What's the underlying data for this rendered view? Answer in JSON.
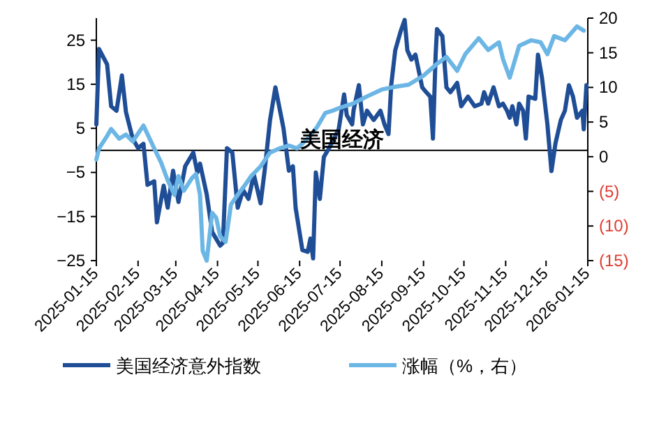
{
  "chart_data": {
    "type": "line",
    "title": "美国经济",
    "xlim": [
      "2025-01-15",
      "2026-01-15"
    ],
    "xticks": [
      "2025-01-15",
      "2025-02-15",
      "2025-03-15",
      "2025-04-15",
      "2025-05-15",
      "2025-06-15",
      "2025-07-15",
      "2025-08-15",
      "2025-09-15",
      "2025-10-15",
      "2025-11-15",
      "2025-12-15",
      "2026-01-15"
    ],
    "ylim": [
      -25,
      30
    ],
    "yticks": [
      -25,
      -15,
      -5,
      5,
      15,
      25
    ],
    "y2lim": [
      -15,
      20
    ],
    "y2ticks": [
      {
        "value": -15,
        "label": "(15)"
      },
      {
        "value": -10,
        "label": "(10)"
      },
      {
        "value": -5,
        "label": "(5)"
      },
      0,
      5,
      10,
      15,
      20
    ],
    "legend": "bottom",
    "grid": false,
    "marker": "none",
    "line_style": "solid",
    "series": [
      {
        "name": "美国经济意外指数",
        "color": "#1f4e96",
        "x": [
          "2025-01-15",
          "2025-01-17",
          "2025-01-23",
          "2025-01-26",
          "2025-01-30",
          "2025-02-03",
          "2025-02-06",
          "2025-02-11",
          "2025-02-15",
          "2025-02-19",
          "2025-02-22",
          "2025-02-27",
          "2025-03-01",
          "2025-03-06",
          "2025-03-09",
          "2025-03-13",
          "2025-03-17",
          "2025-03-22",
          "2025-03-28",
          "2025-03-31",
          "2025-04-02",
          "2025-04-07",
          "2025-04-11",
          "2025-04-17",
          "2025-04-19",
          "2025-04-22",
          "2025-04-26",
          "2025-04-30",
          "2025-05-04",
          "2025-05-08",
          "2025-05-12",
          "2025-05-17",
          "2025-05-20",
          "2025-05-24",
          "2025-05-28",
          "2025-06-03",
          "2025-06-07",
          "2025-06-10",
          "2025-06-12",
          "2025-06-17",
          "2025-06-21",
          "2025-06-23",
          "2025-06-25",
          "2025-06-27",
          "2025-06-30",
          "2025-07-03",
          "2025-07-07",
          "2025-07-14",
          "2025-07-18",
          "2025-07-20",
          "2025-07-24",
          "2025-07-25",
          "2025-07-29",
          "2025-08-01",
          "2025-08-04",
          "2025-08-09",
          "2025-08-14",
          "2025-08-17",
          "2025-08-20",
          "2025-08-22",
          "2025-08-25",
          "2025-08-29",
          "2025-09-01",
          "2025-09-03",
          "2025-09-06",
          "2025-09-09",
          "2025-09-14",
          "2025-09-17",
          "2025-09-20",
          "2025-09-22",
          "2025-09-24",
          "2025-09-25",
          "2025-09-29",
          "2025-10-02",
          "2025-10-05",
          "2025-10-10",
          "2025-10-13",
          "2025-10-18",
          "2025-10-23",
          "2025-10-28",
          "2025-10-30",
          "2025-11-02",
          "2025-11-06",
          "2025-11-10",
          "2025-11-13",
          "2025-11-16",
          "2025-11-18",
          "2025-11-20",
          "2025-11-23",
          "2025-11-25",
          "2025-11-28",
          "2025-11-30",
          "2025-12-02",
          "2025-12-07",
          "2025-12-09",
          "2025-12-12",
          "2025-12-16",
          "2025-12-19",
          "2025-12-22",
          "2025-12-26",
          "2025-12-29",
          "2026-01-01",
          "2026-01-04",
          "2026-01-07",
          "2026-01-11",
          "2026-01-12",
          "2026-01-14"
        ],
        "values": [
          5.9,
          23,
          19.5,
          10,
          9,
          17,
          8.7,
          2.7,
          0.5,
          1.5,
          -7.8,
          -7,
          -16.3,
          -8,
          -13,
          -4.6,
          -11.7,
          -3.6,
          -0.5,
          -5,
          -3,
          -10,
          -18.5,
          -21.6,
          -21,
          0.5,
          -0.5,
          -13,
          -9,
          -11,
          -5.5,
          -12,
          -4.6,
          6.9,
          14.3,
          5,
          -4.6,
          -3.6,
          -13,
          -22.6,
          -23,
          -20,
          -24.5,
          -5,
          -11,
          -1.5,
          0.6,
          4.8,
          12.7,
          8,
          5.9,
          9,
          14.8,
          5.9,
          9,
          6.9,
          9,
          5.9,
          3.7,
          14.8,
          22.7,
          27,
          29.6,
          22.7,
          20.6,
          21.7,
          14.3,
          13.2,
          12.2,
          2.7,
          21.7,
          27.5,
          25.9,
          14.3,
          13.2,
          15.3,
          10,
          12.2,
          10,
          10.6,
          13.2,
          10.6,
          14.3,
          10,
          10.6,
          9,
          7.4,
          10,
          5.9,
          10.6,
          9,
          2.7,
          12.2,
          11.7,
          21.7,
          16.4,
          5.9,
          -4.7,
          1.6,
          6.9,
          9,
          14.8,
          12.2,
          7.4,
          9,
          4.8,
          14.8
        ]
      },
      {
        "name": "涨幅（%，右）",
        "color": "#6cb6e6",
        "axis": "y2",
        "x": [
          "2025-01-15",
          "2025-01-17",
          "2025-01-23",
          "2025-01-26",
          "2025-02-01",
          "2025-02-06",
          "2025-02-11",
          "2025-02-19",
          "2025-02-27",
          "2025-03-04",
          "2025-03-09",
          "2025-03-14",
          "2025-03-17",
          "2025-03-21",
          "2025-03-27",
          "2025-03-30",
          "2025-04-02",
          "2025-04-04",
          "2025-04-07",
          "2025-04-11",
          "2025-04-14",
          "2025-04-17",
          "2025-04-21",
          "2025-04-25",
          "2025-04-30",
          "2025-05-05",
          "2025-05-10",
          "2025-05-17",
          "2025-05-24",
          "2025-05-31",
          "2025-06-07",
          "2025-06-13",
          "2025-06-21",
          "2025-06-28",
          "2025-07-04",
          "2025-07-09",
          "2025-07-14",
          "2025-07-25",
          "2025-08-04",
          "2025-08-15",
          "2025-08-25",
          "2025-09-04",
          "2025-09-15",
          "2025-09-25",
          "2025-10-02",
          "2025-10-10",
          "2025-10-16",
          "2025-10-26",
          "2025-11-02",
          "2025-11-10",
          "2025-11-13",
          "2025-11-18",
          "2025-11-25",
          "2025-12-04",
          "2025-12-11",
          "2025-12-16",
          "2025-12-21",
          "2025-12-29",
          "2026-01-07",
          "2026-01-12"
        ],
        "values": [
          -0.4,
          1.2,
          3,
          4,
          2.6,
          3.2,
          2.2,
          4.5,
          1.2,
          -0.8,
          -3.4,
          -5.5,
          -2.8,
          -4.9,
          -3.1,
          -2.5,
          -5.5,
          -13.6,
          -15,
          -8.1,
          -8.8,
          -11.5,
          -12.3,
          -6.9,
          -5.5,
          -4.2,
          -2.8,
          -1.4,
          0.6,
          1.2,
          1.6,
          1.2,
          2.6,
          4.3,
          6.3,
          6.6,
          7,
          7.7,
          8.7,
          9.7,
          10.1,
          10.4,
          11.7,
          13.4,
          14.4,
          12.4,
          14.8,
          17.1,
          15.4,
          16.5,
          14.1,
          11.4,
          16,
          16.8,
          16.5,
          14.8,
          17.4,
          16.8,
          18.8,
          18.2
        ]
      }
    ]
  }
}
